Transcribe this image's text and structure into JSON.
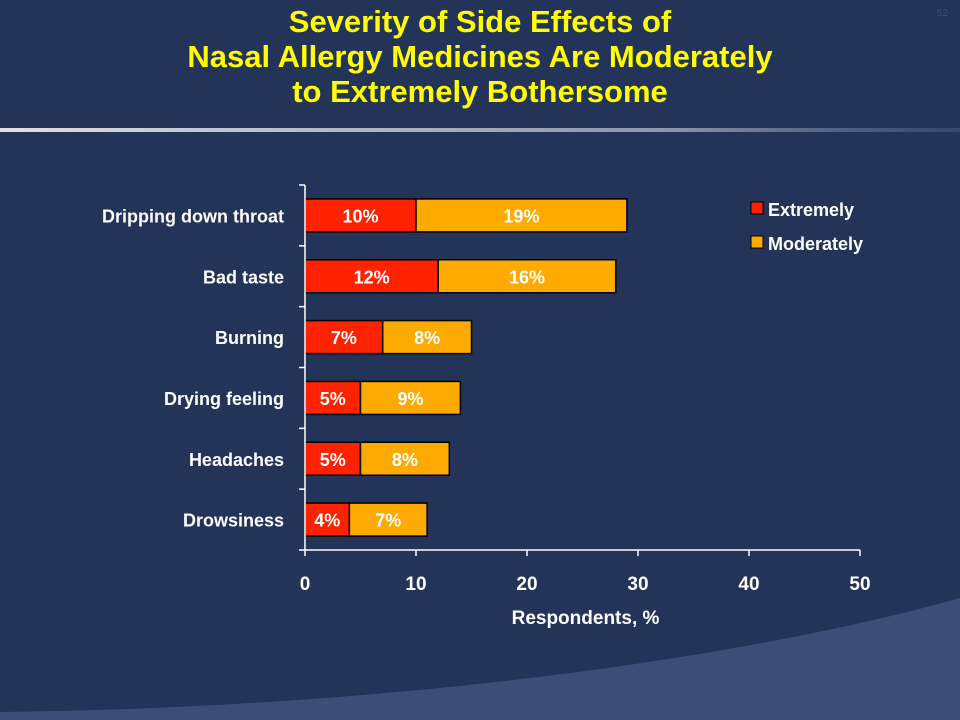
{
  "slide": {
    "title_lines": [
      "Severity of Side Effects of",
      "Nasal Allergy Medicines Are Moderately",
      "to Extremely Bothersome"
    ],
    "slide_number": "52"
  },
  "colors": {
    "background": "#243358",
    "title": "#ffff00",
    "extremely": "#ff2200",
    "moderately": "#ffaa00",
    "label_light": "#ffffff",
    "label_dark": "#000000"
  },
  "chart_data": {
    "type": "bar",
    "orientation": "horizontal",
    "stacked": true,
    "categories": [
      "Dripping down throat",
      "Bad taste",
      "Burning",
      "Drying feeling",
      "Headaches",
      "Drowsiness"
    ],
    "series": [
      {
        "name": "Extremely",
        "values": [
          10,
          12,
          7,
          5,
          5,
          4
        ],
        "labels": [
          "10%",
          "12%",
          "7%",
          "5%",
          "5%",
          "4%"
        ]
      },
      {
        "name": "Moderately",
        "values": [
          19,
          16,
          8,
          9,
          8,
          7
        ],
        "labels": [
          "19%",
          "16%",
          "8%",
          "9%",
          "8%",
          "7%"
        ]
      }
    ],
    "xlabel": "Respondents, %",
    "xlim": [
      0,
      50
    ],
    "xticks": [
      "0",
      "10",
      "20",
      "30",
      "40",
      "50"
    ],
    "grid": false,
    "legend": "top-right"
  }
}
